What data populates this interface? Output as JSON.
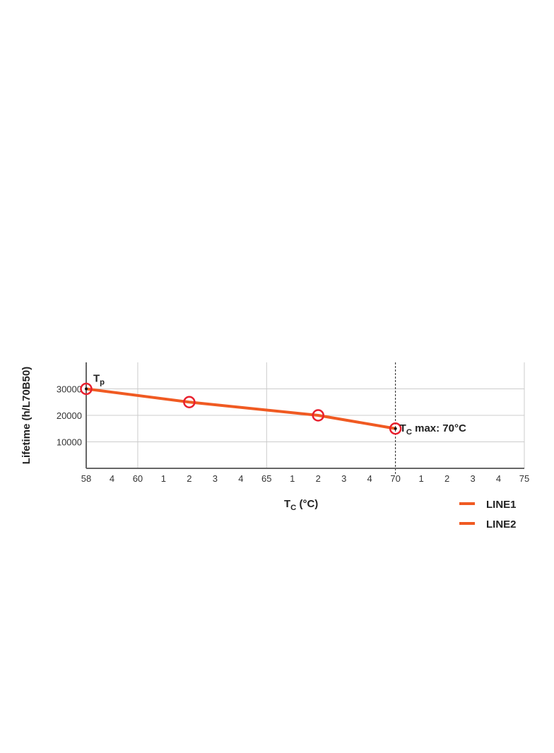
{
  "chart_data": {
    "type": "line",
    "ylabel": "Lifetime (h/L70B50)",
    "xlabel": {
      "main": "T",
      "sub": "C",
      "rest": " (°C)"
    },
    "xlim": [
      58,
      75
    ],
    "ylim": [
      0,
      40000
    ],
    "x_ticks": [
      58,
      59,
      60,
      61,
      62,
      63,
      64,
      65,
      66,
      67,
      68,
      69,
      70,
      71,
      72,
      73,
      74,
      75
    ],
    "x_tick_labels": [
      "58",
      "4",
      "60",
      "1",
      "2",
      "3",
      "4",
      "65",
      "1",
      "2",
      "3",
      "4",
      "70",
      "1",
      "2",
      "3",
      "4",
      "75"
    ],
    "x_major_gridlines": [
      58,
      60,
      65,
      70,
      75
    ],
    "y_ticks": [
      10000,
      20000,
      30000
    ],
    "y_tick_labels": [
      "10000",
      "20000",
      "30000"
    ],
    "grid": true,
    "series": [
      {
        "name": "LINE1",
        "x": [
          58,
          62,
          67,
          70
        ],
        "y": [
          30000,
          25000,
          20000,
          15000
        ]
      }
    ],
    "legend": {
      "placement": "bottom-right",
      "entries": [
        "LINE1",
        "LINE2"
      ]
    },
    "annotations": {
      "tp": {
        "main": "T",
        "sub": "p",
        "x": 58,
        "y": 30000
      },
      "tc_max": {
        "main": "T",
        "sub": "C",
        "rest": " max: 70°C",
        "x": 70,
        "y": 15000
      }
    },
    "vline_x": 70,
    "colors": {
      "line": "#f05a22",
      "marker": "#e8202e",
      "grid": "#cccccc",
      "axis": "#666666"
    }
  }
}
